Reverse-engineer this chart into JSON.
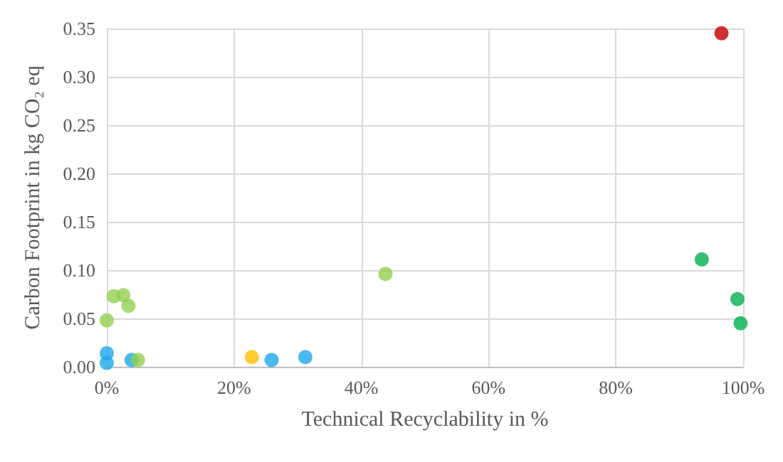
{
  "chart_data": {
    "type": "scatter",
    "xlabel": "Technical Recyclability in %",
    "ylabel": "Carbon Footprint in kg CO₂ eq",
    "xlim": [
      0,
      100
    ],
    "xticks": [
      {
        "value": 0,
        "label": "0%"
      },
      {
        "value": 20,
        "label": "20%"
      },
      {
        "value": 40,
        "label": "40%"
      },
      {
        "value": 60,
        "label": "60%"
      },
      {
        "value": 80,
        "label": "80%"
      },
      {
        "value": 100,
        "label": "100%"
      }
    ],
    "ylim": [
      0,
      0.35
    ],
    "yticks": [
      {
        "value": 0,
        "label": "0.00"
      },
      {
        "value": 0.05,
        "label": "0.05"
      },
      {
        "value": 0.1,
        "label": "0.10"
      },
      {
        "value": 0.15,
        "label": "0.15"
      },
      {
        "value": 0.2,
        "label": "0.20"
      },
      {
        "value": 0.25,
        "label": "0.25"
      },
      {
        "value": 0.3,
        "label": "0.30"
      },
      {
        "value": 0.35,
        "label": "0.35"
      }
    ],
    "grid": true,
    "marker": "circle",
    "series": [
      {
        "color": "#1ca7ec",
        "x": [
          0,
          0,
          3.9,
          25.9,
          31.2
        ],
        "values": [
          0.014,
          0.004,
          0.007,
          0.007,
          0.01
        ]
      },
      {
        "color": "#92d050",
        "x": [
          0,
          1.1,
          2.6,
          3.4,
          4.9,
          43.8
        ],
        "values": [
          0.048,
          0.073,
          0.074,
          0.063,
          0.007,
          0.096
        ]
      },
      {
        "color": "#ffc000",
        "x": [
          22.8
        ],
        "values": [
          0.01
        ]
      },
      {
        "color": "#00b050",
        "x": [
          93.5,
          99.1,
          99.6
        ],
        "values": [
          0.111,
          0.07,
          0.045
        ]
      },
      {
        "color": "#c00000",
        "x": [
          96.6
        ],
        "values": [
          0.345
        ]
      }
    ]
  }
}
